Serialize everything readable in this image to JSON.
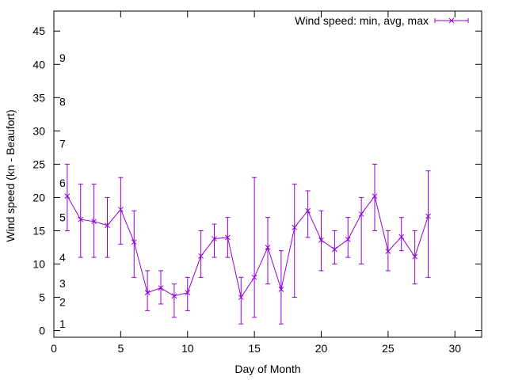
{
  "chart_data": {
    "type": "line",
    "xlabel": "Day of Month",
    "ylabel": "Wind speed (kn - Beaufort)",
    "xlim": [
      0,
      32
    ],
    "ylim": [
      -1,
      48
    ],
    "x_ticks": [
      0,
      5,
      10,
      15,
      20,
      25,
      30
    ],
    "y_ticks": [
      0,
      5,
      10,
      15,
      20,
      25,
      30,
      35,
      40,
      45
    ],
    "grid": false,
    "legend_position": "top-right",
    "beaufort_labels": [
      {
        "label": "1",
        "y": 1
      },
      {
        "label": "2",
        "y": 4.3
      },
      {
        "label": "3",
        "y": 7.1
      },
      {
        "label": "4",
        "y": 11
      },
      {
        "label": "5",
        "y": 17
      },
      {
        "label": "6",
        "y": 22.2
      },
      {
        "label": "7",
        "y": 28.1
      },
      {
        "label": "8",
        "y": 34.4
      },
      {
        "label": "9",
        "y": 41
      }
    ],
    "series": [
      {
        "name": "Wind speed: min, avg, max",
        "color": "#9400d3",
        "points": [
          {
            "x": 1,
            "avg": 20.2,
            "min": 15,
            "max": 25
          },
          {
            "x": 2,
            "avg": 16.7,
            "min": 11,
            "max": 22
          },
          {
            "x": 3,
            "avg": 16.4,
            "min": 11,
            "max": 22
          },
          {
            "x": 4,
            "avg": 15.8,
            "min": 11,
            "max": 20
          },
          {
            "x": 5,
            "avg": 18.2,
            "min": 13,
            "max": 23
          },
          {
            "x": 6,
            "avg": 13.3,
            "min": 8,
            "max": 18
          },
          {
            "x": 7,
            "avg": 5.7,
            "min": 3,
            "max": 9
          },
          {
            "x": 8,
            "avg": 6.4,
            "min": 4,
            "max": 9
          },
          {
            "x": 9,
            "avg": 5.2,
            "min": 2,
            "max": 7
          },
          {
            "x": 10,
            "avg": 5.7,
            "min": 3,
            "max": 8
          },
          {
            "x": 11,
            "avg": 11.2,
            "min": 8,
            "max": 15
          },
          {
            "x": 12,
            "avg": 13.8,
            "min": 11,
            "max": 16
          },
          {
            "x": 13,
            "avg": 14,
            "min": 11,
            "max": 17
          },
          {
            "x": 14,
            "avg": 5,
            "min": 1,
            "max": 8
          },
          {
            "x": 15,
            "avg": 8,
            "min": 2,
            "max": 23
          },
          {
            "x": 16,
            "avg": 12.5,
            "min": 7,
            "max": 17
          },
          {
            "x": 17,
            "avg": 6.2,
            "min": 1,
            "max": 12
          },
          {
            "x": 18,
            "avg": 15.5,
            "min": 5,
            "max": 22
          },
          {
            "x": 19,
            "avg": 18,
            "min": 14,
            "max": 21
          },
          {
            "x": 20,
            "avg": 13.6,
            "min": 9,
            "max": 18
          },
          {
            "x": 21,
            "avg": 12.2,
            "min": 10,
            "max": 15
          },
          {
            "x": 22,
            "avg": 13.7,
            "min": 11,
            "max": 17
          },
          {
            "x": 23,
            "avg": 17.5,
            "min": 10,
            "max": 20
          },
          {
            "x": 24,
            "avg": 20.2,
            "min": 15,
            "max": 25
          },
          {
            "x": 25,
            "avg": 11.9,
            "min": 9,
            "max": 15
          },
          {
            "x": 26,
            "avg": 14.1,
            "min": 12,
            "max": 17
          },
          {
            "x": 27,
            "avg": 11.1,
            "min": 7,
            "max": 15
          },
          {
            "x": 28,
            "avg": 17.2,
            "min": 8,
            "max": 24
          }
        ]
      }
    ]
  }
}
